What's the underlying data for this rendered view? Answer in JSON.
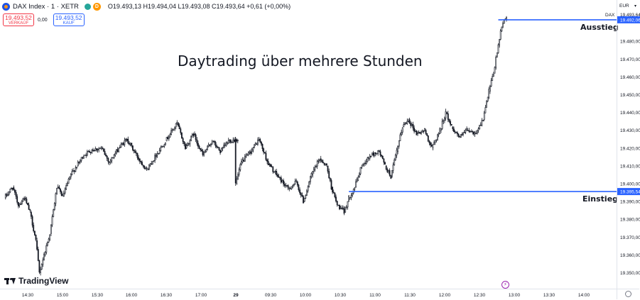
{
  "header": {
    "symbol": "DAX Index · 1 · XETR",
    "status_d": "D",
    "ohlc": "O19.493,13  H19.494,04  L19.493,08  C19.493,64  +0,61 (+0,00%)"
  },
  "trade": {
    "sell_price": "19.493,52",
    "sell_label": "VERKAUF",
    "spread": "0,00",
    "buy_price": "19.493,52",
    "buy_label": "KAUF"
  },
  "annotations": {
    "title": "Daytrading über mehrere Stunden",
    "exit_label": "Ausstieg",
    "entry_label": "Einstieg"
  },
  "branding": {
    "logo_text": "TradingView"
  },
  "price_scale": {
    "currency": "EUR"
  },
  "colors": {
    "candle": "#131722",
    "line": "#2962ff",
    "label_blue": "#2962ff",
    "sell": "#f23645",
    "buy": "#2962ff"
  },
  "icons": [
    "tradingview-logo-icon",
    "status-dot-icon",
    "flash-icon",
    "gear-icon",
    "chevron-down-icon"
  ],
  "chart_data": {
    "type": "candlestick",
    "ylim": [
      19345,
      19496
    ],
    "y_ticks": [
      19350,
      19360,
      19370,
      19380,
      19390,
      19400,
      19410,
      19420,
      19430,
      19440,
      19450,
      19460,
      19470,
      19480
    ],
    "y_tick_labels": [
      "19.350,00",
      "19.360,00",
      "19.370,00",
      "19.380,00",
      "19.390,00",
      "19.400,00",
      "19.410,00",
      "19.420,00",
      "19.430,00",
      "19.440,00",
      "19.450,00",
      "19.460,00",
      "19.470,00",
      "19.480,00"
    ],
    "x_ticks": [
      "14:30",
      "15:00",
      "15:30",
      "16:00",
      "16:30",
      "17:00",
      "29",
      "09:30",
      "10:00",
      "10:30",
      "11:00",
      "11:30",
      "12:00",
      "12:30",
      "13:00",
      "13:30",
      "14:00"
    ],
    "price_labels": [
      {
        "name": "DAX",
        "value": 19493.64,
        "text": "19.493,64",
        "style": "last"
      },
      {
        "name": "Ausstieg",
        "value": 19492.06,
        "text": "19.492,06",
        "style": "line"
      },
      {
        "name": "Einstieg",
        "value": 19395.54,
        "text": "19.395,54",
        "style": "line"
      }
    ],
    "horizontal_lines": [
      {
        "name": "Ausstieg",
        "price": 19492.06,
        "from_time": "12:45"
      },
      {
        "name": "Einstieg",
        "price": 19395.54,
        "from_time": "10:37"
      }
    ],
    "anchors": [
      {
        "t": "14:10",
        "p": 19392
      },
      {
        "t": "14:17",
        "p": 19398
      },
      {
        "t": "14:22",
        "p": 19388
      },
      {
        "t": "14:27",
        "p": 19392
      },
      {
        "t": "14:32",
        "p": 19384
      },
      {
        "t": "14:37",
        "p": 19368
      },
      {
        "t": "14:40",
        "p": 19350
      },
      {
        "t": "14:44",
        "p": 19360
      },
      {
        "t": "14:49",
        "p": 19372
      },
      {
        "t": "14:55",
        "p": 19398
      },
      {
        "t": "15:00",
        "p": 19393
      },
      {
        "t": "15:07",
        "p": 19405
      },
      {
        "t": "15:12",
        "p": 19410
      },
      {
        "t": "15:18",
        "p": 19416
      },
      {
        "t": "15:25",
        "p": 19419
      },
      {
        "t": "15:33",
        "p": 19420
      },
      {
        "t": "15:40",
        "p": 19412
      },
      {
        "t": "15:48",
        "p": 19420
      },
      {
        "t": "15:55",
        "p": 19425
      },
      {
        "t": "16:05",
        "p": 19414
      },
      {
        "t": "16:12",
        "p": 19408
      },
      {
        "t": "16:20",
        "p": 19416
      },
      {
        "t": "16:28",
        "p": 19424
      },
      {
        "t": "16:38",
        "p": 19434
      },
      {
        "t": "16:45",
        "p": 19420
      },
      {
        "t": "16:52",
        "p": 19428
      },
      {
        "t": "17:00",
        "p": 19416
      },
      {
        "t": "17:08",
        "p": 19424
      },
      {
        "t": "17:15",
        "p": 19418
      },
      {
        "t": "17:22",
        "p": 19424
      },
      {
        "t": "17:30",
        "p": 19425
      },
      {
        "t": "09:00",
        "p": 19400
      },
      {
        "t": "09:05",
        "p": 19412
      },
      {
        "t": "09:13",
        "p": 19418
      },
      {
        "t": "09:20",
        "p": 19425
      },
      {
        "t": "09:28",
        "p": 19411
      },
      {
        "t": "09:35",
        "p": 19405
      },
      {
        "t": "09:45",
        "p": 19397
      },
      {
        "t": "09:52",
        "p": 19401
      },
      {
        "t": "09:58",
        "p": 19390
      },
      {
        "t": "10:05",
        "p": 19405
      },
      {
        "t": "10:12",
        "p": 19414
      },
      {
        "t": "10:18",
        "p": 19410
      },
      {
        "t": "10:22",
        "p": 19398
      },
      {
        "t": "10:27",
        "p": 19388
      },
      {
        "t": "10:33",
        "p": 19384
      },
      {
        "t": "10:37",
        "p": 19392
      },
      {
        "t": "10:42",
        "p": 19398
      },
      {
        "t": "10:48",
        "p": 19410
      },
      {
        "t": "10:56",
        "p": 19416
      },
      {
        "t": "11:03",
        "p": 19418
      },
      {
        "t": "11:08",
        "p": 19410
      },
      {
        "t": "11:13",
        "p": 19404
      },
      {
        "t": "11:18",
        "p": 19418
      },
      {
        "t": "11:23",
        "p": 19432
      },
      {
        "t": "11:28",
        "p": 19436
      },
      {
        "t": "11:35",
        "p": 19428
      },
      {
        "t": "11:42",
        "p": 19430
      },
      {
        "t": "11:48",
        "p": 19420
      },
      {
        "t": "11:55",
        "p": 19430
      },
      {
        "t": "12:00",
        "p": 19440
      },
      {
        "t": "12:05",
        "p": 19432
      },
      {
        "t": "12:12",
        "p": 19426
      },
      {
        "t": "12:18",
        "p": 19430
      },
      {
        "t": "12:25",
        "p": 19428
      },
      {
        "t": "12:32",
        "p": 19436
      },
      {
        "t": "12:37",
        "p": 19452
      },
      {
        "t": "12:41",
        "p": 19462
      },
      {
        "t": "12:45",
        "p": 19478
      },
      {
        "t": "12:48",
        "p": 19488
      },
      {
        "t": "12:50",
        "p": 19492
      },
      {
        "t": "12:52",
        "p": 19494
      }
    ]
  }
}
